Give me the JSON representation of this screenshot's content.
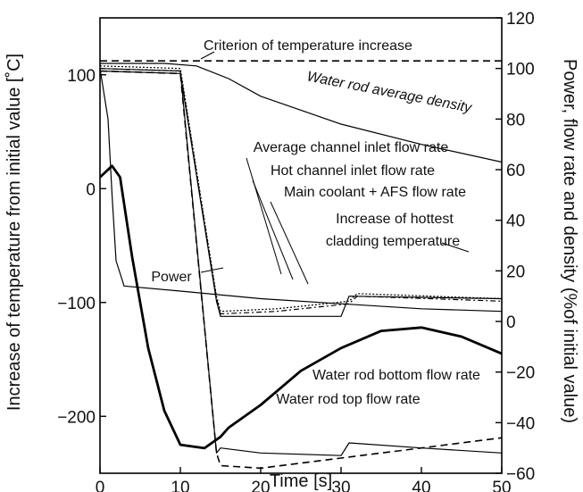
{
  "chart_data": {
    "type": "line",
    "xlabel": "Time [s]",
    "ylabel_left": "Increase of temperature from initial value [˚C]",
    "ylabel_right": "Power, flow rate and density (%of initial value)",
    "xlim": [
      0,
      50
    ],
    "ylim_left": [
      -250,
      150
    ],
    "ylim_right": [
      -60,
      120
    ],
    "x_ticks": [
      "0",
      "10",
      "20",
      "30",
      "40",
      "50"
    ],
    "y_ticks_left": [
      "100",
      "0",
      "−100",
      "−200"
    ],
    "y_ticks_right": [
      "120",
      "100",
      "80",
      "60",
      "40",
      "20",
      "0",
      "−20",
      "−40",
      "−60"
    ],
    "grid": false,
    "series": [
      {
        "name": "Criterion of temperature increase",
        "axis": "right",
        "style": "dashed",
        "x": [
          0,
          50
        ],
        "values": [
          103,
          103
        ]
      },
      {
        "name": "Water rod average density",
        "axis": "right",
        "style": "solid",
        "x": [
          0,
          8,
          12,
          16,
          20,
          30,
          40,
          50
        ],
        "values": [
          102,
          102,
          101,
          96,
          89,
          78,
          70,
          63
        ]
      },
      {
        "name": "Power",
        "axis": "right",
        "style": "solid",
        "x": [
          0,
          1,
          1.5,
          2,
          3,
          10,
          20,
          30,
          40,
          50
        ],
        "values": [
          100,
          80,
          50,
          24,
          14,
          12,
          9,
          7,
          5,
          4
        ]
      },
      {
        "name": "Average channel inlet flow rate",
        "axis": "right",
        "style": "dotted",
        "x": [
          0,
          10,
          14.5,
          15,
          22,
          28,
          31,
          32,
          50
        ],
        "values": [
          101,
          100,
          10,
          4,
          5,
          7,
          8,
          11,
          9
        ]
      },
      {
        "name": "Hot channel inlet flow rate",
        "axis": "right",
        "style": "dashdot",
        "x": [
          0,
          10,
          14.5,
          15,
          22,
          28,
          31,
          32,
          50
        ],
        "values": [
          100,
          99,
          9,
          3,
          4,
          6,
          7,
          10,
          8
        ]
      },
      {
        "name": "Main coolant + AFS flow rate",
        "axis": "right",
        "style": "solid",
        "x": [
          0,
          10,
          14.5,
          15,
          30,
          31,
          50
        ],
        "values": [
          99,
          98,
          8,
          2,
          2,
          10,
          9
        ]
      },
      {
        "name": "Increase of hottest cladding temperature",
        "axis": "left",
        "style": "bold",
        "x": [
          0,
          1.5,
          2.5,
          4,
          6,
          8,
          10,
          13,
          15,
          16,
          20,
          25,
          30,
          35,
          40,
          45,
          50
        ],
        "values": [
          10,
          20,
          10,
          -60,
          -140,
          -195,
          -225,
          -228,
          -218,
          -210,
          -190,
          -160,
          -140,
          -125,
          -122,
          -130,
          -145
        ]
      },
      {
        "name": "Water rod bottom flow rate",
        "axis": "right",
        "style": "dashed",
        "x": [
          0,
          10,
          14.5,
          15,
          20,
          30,
          40,
          50
        ],
        "values": [
          99,
          98,
          -52,
          -57,
          -58,
          -54,
          -50,
          -46
        ]
      },
      {
        "name": "Water rod top flow rate",
        "axis": "right",
        "style": "solid",
        "x": [
          0,
          10,
          14.5,
          15,
          20,
          30,
          31,
          40,
          50
        ],
        "values": [
          100,
          99,
          -52,
          -50,
          -52,
          -53,
          -48,
          -50,
          -52
        ]
      }
    ],
    "annotations": [
      "Criterion of temperature increase",
      "Water rod average density",
      "Average channel inlet flow rate",
      "Hot channel inlet flow rate",
      "Main coolant + AFS flow rate",
      "Increase of hottest",
      "cladding temperature",
      "Power",
      "Water rod bottom flow rate",
      "Water rod top flow rate"
    ]
  }
}
